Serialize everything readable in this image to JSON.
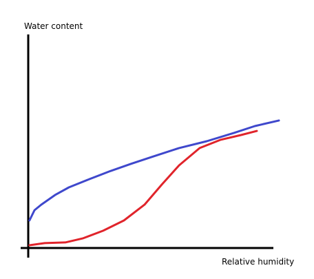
{
  "chart_data": {
    "type": "line",
    "ylabel": "Water content",
    "xlabel": "Relative humidity",
    "xlim": [
      0,
      100
    ],
    "ylim": [
      0,
      100
    ],
    "series": [
      {
        "color": "#3f48cc",
        "x": [
          0.5,
          2.5,
          5.2,
          10.7,
          16.2,
          24.5,
          32.7,
          40.9,
          49.2,
          60.2,
          71.2,
          82.1,
          90.4,
          100
        ],
        "values": [
          12.9,
          17.7,
          20.3,
          24.8,
          28.4,
          32.3,
          36,
          39.4,
          42.6,
          46.8,
          50,
          53.9,
          57.1,
          59.7
        ]
      },
      {
        "color": "#e0242b",
        "x": [
          0.5,
          6.6,
          14.8,
          21.7,
          29.9,
          38.2,
          46.4,
          53.3,
          60.2,
          68.4,
          76.6,
          84.9,
          91.2
        ],
        "values": [
          1.3,
          2.3,
          2.6,
          4.5,
          8.1,
          12.9,
          20.3,
          29.7,
          38.7,
          46.8,
          50.6,
          52.9,
          54.8
        ]
      }
    ]
  }
}
